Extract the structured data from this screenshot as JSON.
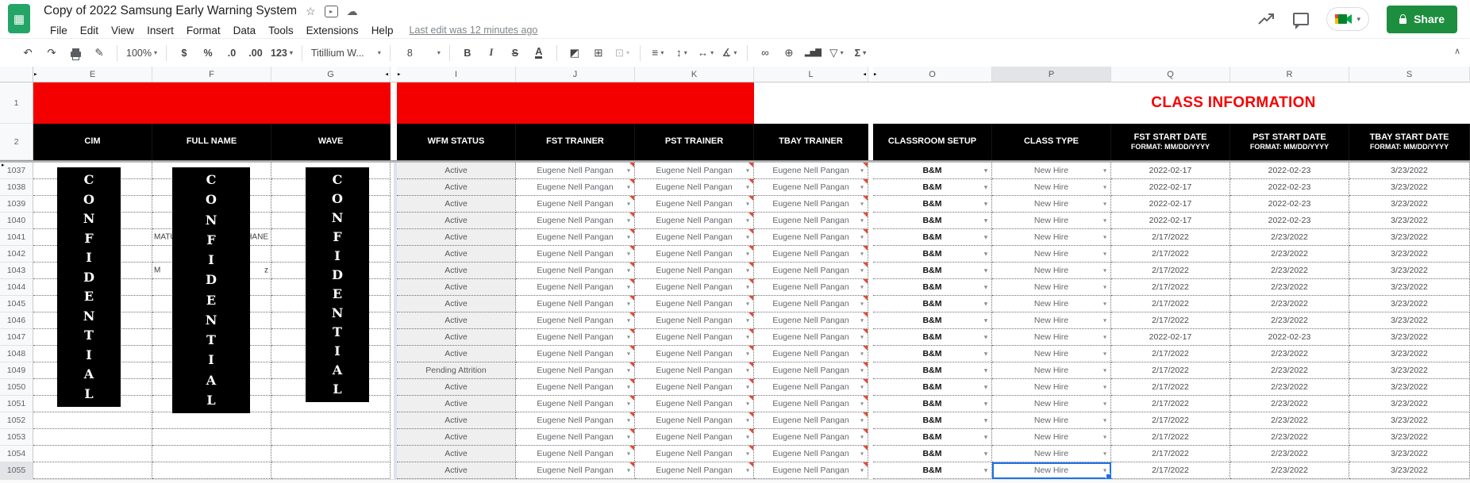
{
  "titlebar": {
    "title": "Copy of 2022 Samsung Early Warning System",
    "icons": {
      "logo_glyph": "▦",
      "star": "☆",
      "move": "▸",
      "cloud": "☁"
    }
  },
  "menubar": {
    "items": [
      "File",
      "Edit",
      "View",
      "Insert",
      "Format",
      "Data",
      "Tools",
      "Extensions",
      "Help"
    ],
    "last_edit": "Last edit was 12 minutes ago"
  },
  "actions": {
    "share_label": "Share"
  },
  "toolbar": {
    "zoom": "100%",
    "currency": "$",
    "percent": "%",
    "dec_less": ".0",
    "dec_more": ".00",
    "more_formats": "123",
    "font_name": "Titillium W...",
    "font_size": "8",
    "bold": "B",
    "italic": "I",
    "strike": "S",
    "text_color": "A",
    "functions": "Σ",
    "icons": {
      "undo": "↶",
      "redo": "↷",
      "paint_format": "✎",
      "fill": "◩",
      "borders": "⊞",
      "merge": "⊡",
      "align": "≡",
      "valign": "↕",
      "wrap": "↔",
      "rotate": "∡",
      "link": "∞",
      "comment": "⊕",
      "chart": "▂▅▇",
      "filter": "▽",
      "collapse": "∧",
      "caret": "▾"
    }
  },
  "colors": {
    "brand_green": "#1d8e3d",
    "band_red": "#f40000",
    "class_info_red": "#f40000",
    "selection_blue": "#1a73e8",
    "note_red": "#e8472e"
  },
  "grid": {
    "columns": [
      {
        "letter": "E",
        "marker_left": "▸"
      },
      {
        "letter": "F"
      },
      {
        "letter": "G",
        "marker_right": "◂"
      },
      {
        "letter": "I",
        "marker_left": "▸"
      },
      {
        "letter": "J"
      },
      {
        "letter": "K"
      },
      {
        "letter": "L",
        "marker_right": "◂"
      },
      {
        "letter": "O",
        "marker_left": "▸"
      },
      {
        "letter": "P",
        "selected": true
      },
      {
        "letter": "Q"
      },
      {
        "letter": "R"
      },
      {
        "letter": "S"
      }
    ],
    "row1": {
      "num": "1",
      "class_information": "CLASS INFORMATION"
    },
    "row2": {
      "num": "2",
      "headers": {
        "E": "CIM",
        "F": "FULL NAME",
        "G": "WAVE",
        "I": "WFM STATUS",
        "J": "FST TRAINER",
        "K": "PST TRAINER",
        "L": "TBAY TRAINER",
        "O": "CLASSROOM SETUP",
        "P": "CLASS TYPE",
        "Q": "FST START DATE",
        "R": "PST START DATE",
        "S": "TBAY START DATE"
      },
      "date_format_note": "FORMAT: MM/DD/YYYY"
    },
    "confidential": "CONFIDENTIAL",
    "rows": [
      {
        "n": "1037",
        "wfm": "Active",
        "fst_trainer": "Eugene Nell Pangan",
        "pst_trainer": "Eugene Nell Pangan",
        "tbay_trainer": "Eugene Nell Pangan",
        "setup": "B&M",
        "class_type": "New Hire",
        "fst_date": "2022-02-17",
        "pst_date": "2022-02-23",
        "tbay_date": "3/23/2022"
      },
      {
        "n": "1038",
        "wfm": "Active",
        "fst_trainer": "Eugene Nell Pangan",
        "pst_trainer": "Eugene Nell Pangan",
        "tbay_trainer": "Eugene Nell Pangan",
        "setup": "B&M",
        "class_type": "New Hire",
        "fst_date": "2022-02-17",
        "pst_date": "2022-02-23",
        "tbay_date": "3/23/2022"
      },
      {
        "n": "1039",
        "wfm": "Active",
        "fst_trainer": "Eugene Nell Pangan",
        "pst_trainer": "Eugene Nell Pangan",
        "tbay_trainer": "Eugene Nell Pangan",
        "setup": "B&M",
        "class_type": "New Hire",
        "fst_date": "2022-02-17",
        "pst_date": "2022-02-23",
        "tbay_date": "3/23/2022"
      },
      {
        "n": "1040",
        "wfm": "Active",
        "fst_trainer": "Eugene Nell Pangan",
        "pst_trainer": "Eugene Nell Pangan",
        "tbay_trainer": "Eugene Nell Pangan",
        "setup": "B&M",
        "class_type": "New Hire",
        "fst_date": "2022-02-17",
        "pst_date": "2022-02-23",
        "tbay_date": "3/23/2022"
      },
      {
        "n": "1041",
        "wfm": "Active",
        "fst_trainer": "Eugene Nell Pangan",
        "pst_trainer": "Eugene Nell Pangan",
        "tbay_trainer": "Eugene Nell Pangan",
        "setup": "B&M",
        "class_type": "New Hire",
        "fst_date": "2/17/2022",
        "pst_date": "2/23/2022",
        "tbay_date": "3/23/2022",
        "name_fragments": {
          "left": "MATU",
          "right": "HANE"
        }
      },
      {
        "n": "1042",
        "wfm": "Active",
        "fst_trainer": "Eugene Nell Pangan",
        "pst_trainer": "Eugene Nell Pangan",
        "tbay_trainer": "Eugene Nell Pangan",
        "setup": "B&M",
        "class_type": "New Hire",
        "fst_date": "2/17/2022",
        "pst_date": "2/23/2022",
        "tbay_date": "3/23/2022"
      },
      {
        "n": "1043",
        "wfm": "Active",
        "fst_trainer": "Eugene Nell Pangan",
        "pst_trainer": "Eugene Nell Pangan",
        "tbay_trainer": "Eugene Nell Pangan",
        "setup": "B&M",
        "class_type": "New Hire",
        "fst_date": "2/17/2022",
        "pst_date": "2/23/2022",
        "tbay_date": "3/23/2022",
        "name_fragments": {
          "left": "M",
          "right": "z"
        }
      },
      {
        "n": "1044",
        "wfm": "Active",
        "fst_trainer": "Eugene Nell Pangan",
        "pst_trainer": "Eugene Nell Pangan",
        "tbay_trainer": "Eugene Nell Pangan",
        "setup": "B&M",
        "class_type": "New Hire",
        "fst_date": "2/17/2022",
        "pst_date": "2/23/2022",
        "tbay_date": "3/23/2022"
      },
      {
        "n": "1045",
        "wfm": "Active",
        "fst_trainer": "Eugene Nell Pangan",
        "pst_trainer": "Eugene Nell Pangan",
        "tbay_trainer": "Eugene Nell Pangan",
        "setup": "B&M",
        "class_type": "New Hire",
        "fst_date": "2/17/2022",
        "pst_date": "2/23/2022",
        "tbay_date": "3/23/2022"
      },
      {
        "n": "1046",
        "wfm": "Active",
        "fst_trainer": "Eugene Nell Pangan",
        "pst_trainer": "Eugene Nell Pangan",
        "tbay_trainer": "Eugene Nell Pangan",
        "setup": "B&M",
        "class_type": "New Hire",
        "fst_date": "2/17/2022",
        "pst_date": "2/23/2022",
        "tbay_date": "3/23/2022"
      },
      {
        "n": "1047",
        "wfm": "Active",
        "fst_trainer": "Eugene Nell Pangan",
        "pst_trainer": "Eugene Nell Pangan",
        "tbay_trainer": "Eugene Nell Pangan",
        "setup": "B&M",
        "class_type": "New Hire",
        "fst_date": "2022-02-17",
        "pst_date": "2022-02-23",
        "tbay_date": "3/23/2022"
      },
      {
        "n": "1048",
        "wfm": "Active",
        "fst_trainer": "Eugene Nell Pangan",
        "pst_trainer": "Eugene Nell Pangan",
        "tbay_trainer": "Eugene Nell Pangan",
        "setup": "B&M",
        "class_type": "New Hire",
        "fst_date": "2/17/2022",
        "pst_date": "2/23/2022",
        "tbay_date": "3/23/2022"
      },
      {
        "n": "1049",
        "wfm": "Pending Attrition",
        "fst_trainer": "Eugene Nell Pangan",
        "pst_trainer": "Eugene Nell Pangan",
        "tbay_trainer": "Eugene Nell Pangan",
        "setup": "B&M",
        "class_type": "New Hire",
        "fst_date": "2/17/2022",
        "pst_date": "2/23/2022",
        "tbay_date": "3/23/2022"
      },
      {
        "n": "1050",
        "wfm": "Active",
        "fst_trainer": "Eugene Nell Pangan",
        "pst_trainer": "Eugene Nell Pangan",
        "tbay_trainer": "Eugene Nell Pangan",
        "setup": "B&M",
        "class_type": "New Hire",
        "fst_date": "2/17/2022",
        "pst_date": "2/23/2022",
        "tbay_date": "3/23/2022"
      },
      {
        "n": "1051",
        "wfm": "Active",
        "fst_trainer": "Eugene Nell Pangan",
        "pst_trainer": "Eugene Nell Pangan",
        "tbay_trainer": "Eugene Nell Pangan",
        "setup": "B&M",
        "class_type": "New Hire",
        "fst_date": "2/17/2022",
        "pst_date": "2/23/2022",
        "tbay_date": "3/23/2022"
      },
      {
        "n": "1052",
        "wfm": "Active",
        "fst_trainer": "Eugene Nell Pangan",
        "pst_trainer": "Eugene Nell Pangan",
        "tbay_trainer": "Eugene Nell Pangan",
        "setup": "B&M",
        "class_type": "New Hire",
        "fst_date": "2/17/2022",
        "pst_date": "2/23/2022",
        "tbay_date": "3/23/2022"
      },
      {
        "n": "1053",
        "wfm": "Active",
        "fst_trainer": "Eugene Nell Pangan",
        "pst_trainer": "Eugene Nell Pangan",
        "tbay_trainer": "Eugene Nell Pangan",
        "setup": "B&M",
        "class_type": "New Hire",
        "fst_date": "2/17/2022",
        "pst_date": "2/23/2022",
        "tbay_date": "3/23/2022"
      },
      {
        "n": "1054",
        "wfm": "Active",
        "fst_trainer": "Eugene Nell Pangan",
        "pst_trainer": "Eugene Nell Pangan",
        "tbay_trainer": "Eugene Nell Pangan",
        "setup": "B&M",
        "class_type": "New Hire",
        "fst_date": "2/17/2022",
        "pst_date": "2/23/2022",
        "tbay_date": "3/23/2022"
      },
      {
        "n": "1055",
        "wfm": "Active",
        "fst_trainer": "Eugene Nell Pangan",
        "pst_trainer": "Eugene Nell Pangan",
        "tbay_trainer": "Eugene Nell Pangan",
        "setup": "B&M",
        "class_type": "New Hire",
        "fst_date": "2/17/2022",
        "pst_date": "2/23/2022",
        "tbay_date": "3/23/2022",
        "selected": true
      }
    ]
  }
}
